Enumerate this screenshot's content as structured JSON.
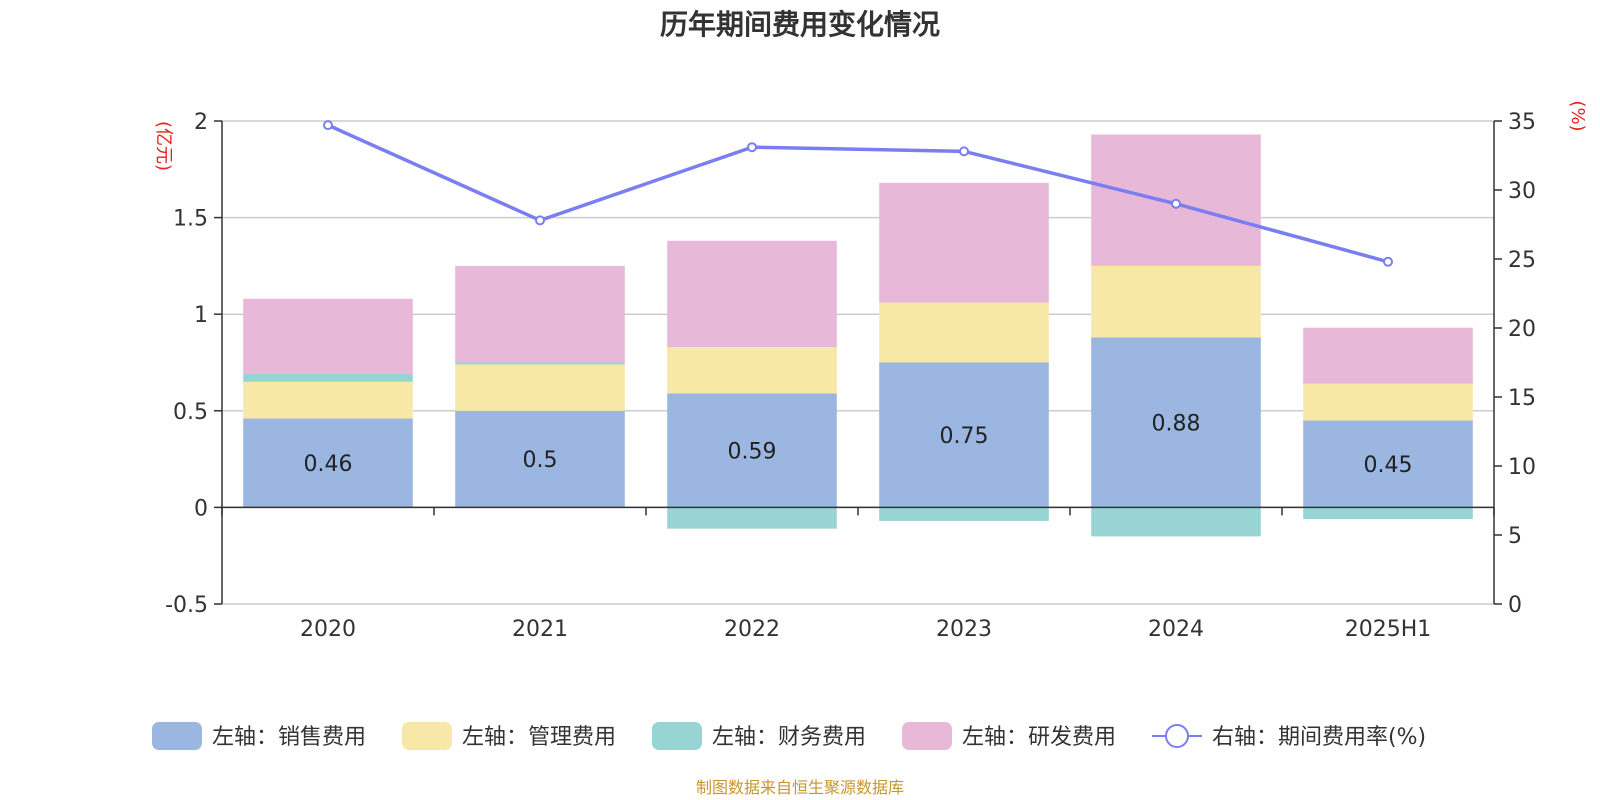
{
  "chart_data": {
    "type": "bar",
    "title": "历年期间费用变化情况",
    "categories": [
      "2020",
      "2021",
      "2022",
      "2023",
      "2024",
      "2025H1"
    ],
    "left_axis": {
      "unit": "(亿元)",
      "ylim": [
        -0.5,
        2
      ],
      "ticks": [
        "-0.5",
        "0",
        "0.5",
        "1",
        "1.5",
        "2"
      ]
    },
    "right_axis": {
      "unit": "(%)",
      "ylim": [
        0,
        35
      ],
      "ticks": [
        "0",
        "5",
        "10",
        "15",
        "20",
        "25",
        "30",
        "35"
      ]
    },
    "series": [
      {
        "name": "左轴：销售费用",
        "axis": "left",
        "type": "bar",
        "color": "#9bb7e1",
        "values": [
          0.46,
          0.5,
          0.59,
          0.75,
          0.88,
          0.45
        ],
        "labels": [
          "0.46",
          "0.5",
          "0.59",
          "0.75",
          "0.88",
          "0.45"
        ]
      },
      {
        "name": "左轴：管理费用",
        "axis": "left",
        "type": "bar",
        "color": "#f8e8a8",
        "values": [
          0.19,
          0.24,
          0.24,
          0.31,
          0.37,
          0.19
        ]
      },
      {
        "name": "左轴：财务费用",
        "axis": "left",
        "type": "bar",
        "color": "#97d4d3",
        "values": [
          0.04,
          0.01,
          -0.11,
          -0.07,
          -0.15,
          -0.06
        ]
      },
      {
        "name": "左轴：研发费用",
        "axis": "left",
        "type": "bar",
        "color": "#e8b8d9",
        "values": [
          0.39,
          0.5,
          0.55,
          0.62,
          0.68,
          0.29
        ]
      },
      {
        "name": "右轴：期间费用率(%)",
        "axis": "right",
        "type": "line",
        "color": "#7a7ef0",
        "values": [
          34.7,
          27.8,
          33.1,
          32.8,
          29.0,
          24.8
        ]
      }
    ],
    "grid": true,
    "legend_position": "bottom"
  },
  "footer": "制图数据来自恒生聚源数据库"
}
